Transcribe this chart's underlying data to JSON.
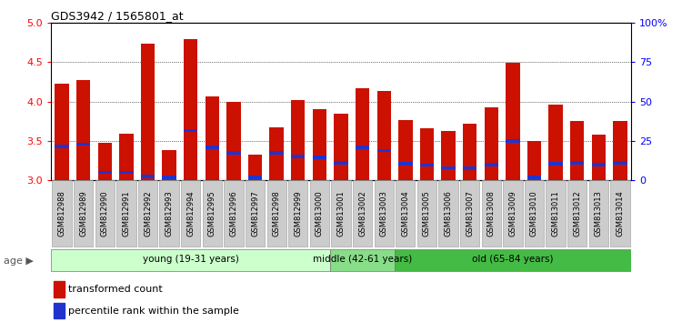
{
  "title": "GDS3942 / 1565801_at",
  "samples": [
    "GSM812988",
    "GSM812989",
    "GSM812990",
    "GSM812991",
    "GSM812992",
    "GSM812993",
    "GSM812994",
    "GSM812995",
    "GSM812996",
    "GSM812997",
    "GSM812998",
    "GSM812999",
    "GSM813000",
    "GSM813001",
    "GSM813002",
    "GSM813003",
    "GSM813004",
    "GSM813005",
    "GSM813006",
    "GSM813007",
    "GSM813008",
    "GSM813009",
    "GSM813010",
    "GSM813011",
    "GSM813012",
    "GSM813013",
    "GSM813014"
  ],
  "red_values": [
    4.22,
    4.27,
    3.47,
    3.59,
    4.73,
    3.38,
    4.79,
    4.06,
    3.99,
    3.33,
    3.67,
    4.02,
    3.9,
    3.84,
    4.17,
    4.13,
    3.76,
    3.66,
    3.62,
    3.72,
    3.92,
    4.49,
    3.5,
    3.96,
    3.75,
    3.58,
    3.75
  ],
  "blue_values": [
    3.43,
    3.46,
    3.1,
    3.1,
    3.05,
    3.04,
    3.63,
    3.42,
    3.35,
    3.04,
    3.35,
    3.3,
    3.29,
    3.22,
    3.42,
    3.38,
    3.21,
    3.19,
    3.16,
    3.15,
    3.2,
    3.5,
    3.04,
    3.21,
    3.22,
    3.2,
    3.22
  ],
  "ylim": [
    3.0,
    5.0
  ],
  "yticks_left": [
    3.0,
    3.5,
    4.0,
    4.5,
    5.0
  ],
  "yticks_right_vals": [
    0,
    25,
    50,
    75,
    100
  ],
  "yticks_right_labels": [
    "0",
    "25",
    "50",
    "75",
    "100%"
  ],
  "groups": [
    {
      "label": "young (19-31 years)",
      "start": 0,
      "end": 13,
      "color": "#ccffcc"
    },
    {
      "label": "middle (42-61 years)",
      "start": 13,
      "end": 16,
      "color": "#88dd88"
    },
    {
      "label": "old (65-84 years)",
      "start": 16,
      "end": 27,
      "color": "#44bb44"
    }
  ],
  "bar_color": "#cc1100",
  "marker_color": "#2233cc",
  "tick_label_bg": "#cccccc",
  "legend_items": [
    {
      "label": "transformed count",
      "color": "#cc1100"
    },
    {
      "label": "percentile rank within the sample",
      "color": "#2233cc"
    }
  ]
}
